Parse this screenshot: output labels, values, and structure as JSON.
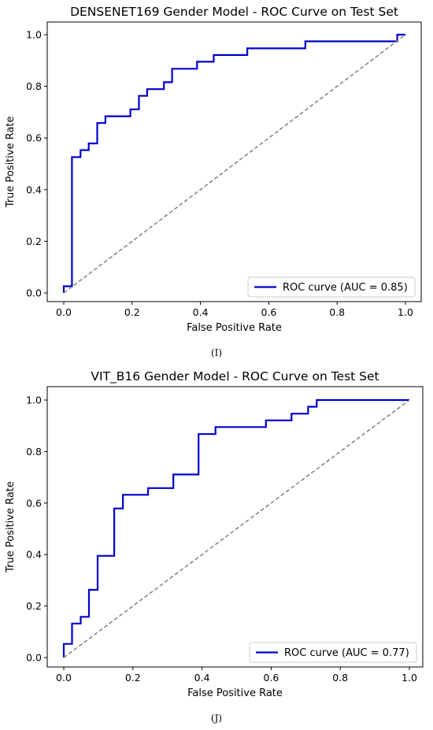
{
  "captions": [
    "(I)",
    "(J)"
  ],
  "chart_data": [
    {
      "type": "line",
      "title": "DENSENET169 Gender Model - ROC Curve on Test Set",
      "xlabel": "False Positive Rate",
      "ylabel": "True Positive Rate",
      "xlim": [
        0,
        1
      ],
      "ylim": [
        0,
        1
      ],
      "xticks": [
        "0.0",
        "0.2",
        "0.4",
        "0.6",
        "0.8",
        "1.0"
      ],
      "yticks": [
        "0.0",
        "0.2",
        "0.4",
        "0.6",
        "0.8",
        "1.0"
      ],
      "grid": false,
      "legend_position": "lower-right",
      "series": [
        {
          "name": "ROC curve (AUC = 0.85)",
          "color": "#0000cc",
          "style": "solid",
          "x": [
            0,
            0,
            0.024,
            0.024,
            0.049,
            0.049,
            0.073,
            0.073,
            0.098,
            0.098,
            0.122,
            0.122,
            0.195,
            0.195,
            0.22,
            0.22,
            0.244,
            0.244,
            0.293,
            0.293,
            0.317,
            0.317,
            0.39,
            0.39,
            0.439,
            0.439,
            0.537,
            0.537,
            0.707,
            0.707,
            0.976,
            0.976,
            1.0
          ],
          "y": [
            0,
            0.026,
            0.026,
            0.526,
            0.526,
            0.553,
            0.553,
            0.579,
            0.579,
            0.658,
            0.658,
            0.684,
            0.684,
            0.711,
            0.711,
            0.763,
            0.763,
            0.789,
            0.789,
            0.816,
            0.816,
            0.868,
            0.868,
            0.895,
            0.895,
            0.921,
            0.921,
            0.947,
            0.947,
            0.974,
            0.974,
            1.0,
            1.0
          ]
        },
        {
          "name": "",
          "color": "#808080",
          "style": "dashed",
          "x": [
            0,
            1
          ],
          "y": [
            0,
            1
          ]
        }
      ]
    },
    {
      "type": "line",
      "title": "VIT_B16 Gender Model - ROC Curve on Test Set",
      "xlabel": "False Positive Rate",
      "ylabel": "True Positive Rate",
      "xlim": [
        0,
        1
      ],
      "ylim": [
        0,
        1
      ],
      "xticks": [
        "0.0",
        "0.2",
        "0.4",
        "0.6",
        "0.8",
        "1.0"
      ],
      "yticks": [
        "0.0",
        "0.2",
        "0.4",
        "0.6",
        "0.8",
        "1.0"
      ],
      "grid": false,
      "legend_position": "lower-right",
      "series": [
        {
          "name": "ROC curve (AUC = 0.77)",
          "color": "#0000cc",
          "style": "solid",
          "x": [
            0,
            0,
            0.024,
            0.024,
            0.049,
            0.049,
            0.073,
            0.073,
            0.098,
            0.098,
            0.146,
            0.146,
            0.171,
            0.171,
            0.244,
            0.244,
            0.317,
            0.317,
            0.39,
            0.39,
            0.439,
            0.439,
            0.585,
            0.585,
            0.659,
            0.659,
            0.707,
            0.707,
            0.732,
            0.732,
            1.0
          ],
          "y": [
            0,
            0.053,
            0.053,
            0.132,
            0.132,
            0.158,
            0.158,
            0.263,
            0.263,
            0.395,
            0.395,
            0.579,
            0.579,
            0.632,
            0.632,
            0.658,
            0.658,
            0.711,
            0.711,
            0.868,
            0.868,
            0.895,
            0.895,
            0.921,
            0.921,
            0.947,
            0.947,
            0.974,
            0.974,
            1.0,
            1.0
          ]
        },
        {
          "name": "",
          "color": "#808080",
          "style": "dashed",
          "x": [
            0,
            1
          ],
          "y": [
            0,
            1
          ]
        }
      ]
    }
  ]
}
